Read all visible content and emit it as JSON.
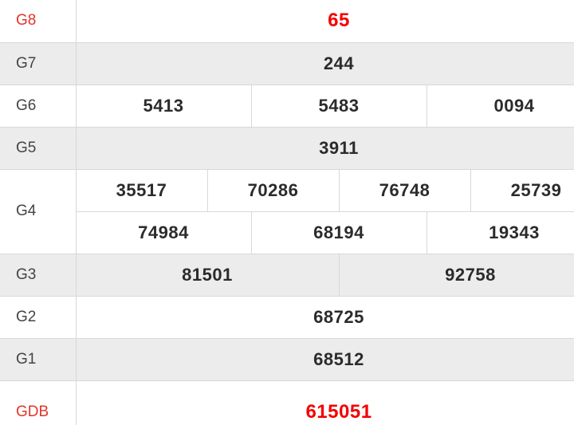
{
  "table_name": "lottery-prize-results",
  "colors": {
    "row_alt_bg": "#ececec",
    "row_bg": "#ffffff",
    "border": "#d8d8d8",
    "value_text": "#2b2b2b",
    "label_text": "#444444",
    "label_red": "#e23528",
    "value_red": "#f40000"
  },
  "rows": [
    {
      "label": "G8",
      "values": [
        "65"
      ],
      "highlight": true
    },
    {
      "label": "G7",
      "values": [
        "244"
      ]
    },
    {
      "label": "G6",
      "values": [
        "5413",
        "5483",
        "0094"
      ]
    },
    {
      "label": "G5",
      "values": [
        "3911"
      ]
    },
    {
      "label": "G4",
      "values": [
        "35517",
        "70286",
        "76748",
        "25739",
        "74984",
        "68194",
        "19343"
      ]
    },
    {
      "label": "G3",
      "values": [
        "81501",
        "92758"
      ]
    },
    {
      "label": "G2",
      "values": [
        "68725"
      ]
    },
    {
      "label": "G1",
      "values": [
        "68512"
      ]
    },
    {
      "label": "GDB",
      "values": [
        "615051"
      ],
      "highlight": true
    }
  ]
}
